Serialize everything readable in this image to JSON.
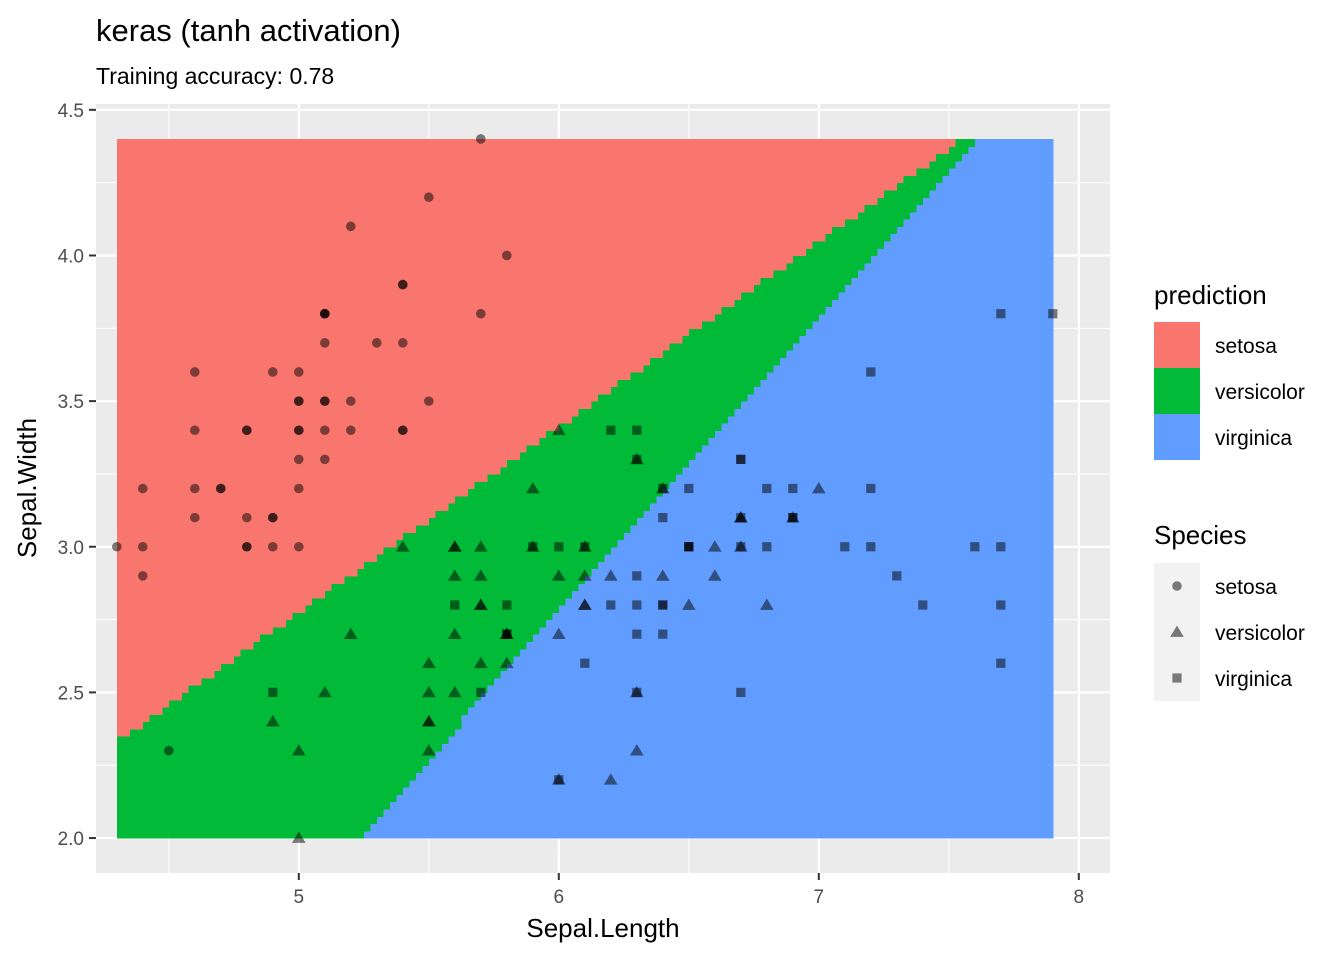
{
  "chart_data": {
    "type": "scatter",
    "title": "keras (tanh activation)",
    "subtitle": "Training accuracy: 0.78",
    "xlabel": "Sepal.Length",
    "ylabel": "Sepal.Width",
    "xlim": [
      4.22,
      8.12
    ],
    "ylim": [
      1.88,
      4.52
    ],
    "x_ticks": [
      5,
      6,
      7,
      8
    ],
    "y_ticks": [
      2.0,
      2.5,
      3.0,
      3.5,
      4.0,
      4.5
    ],
    "x_tick_labels": [
      "5",
      "6",
      "7",
      "8"
    ],
    "y_tick_labels": [
      "2.0",
      "2.5",
      "3.0",
      "3.5",
      "4.0",
      "4.5"
    ],
    "grid": true,
    "background": "#EBEBEB",
    "prediction_region": {
      "x_range": [
        4.3,
        7.9
      ],
      "y_range": [
        2.0,
        4.4
      ],
      "versicolor_lower_boundary": [
        [
          5.23,
          2.0
        ],
        [
          7.6,
          4.4
        ]
      ],
      "versicolor_upper_boundary": [
        [
          4.3,
          2.33
        ],
        [
          7.55,
          4.4
        ]
      ]
    },
    "legend_prediction": {
      "title": "prediction",
      "position": "right",
      "items": [
        {
          "label": "setosa",
          "color": "#F8766D"
        },
        {
          "label": "versicolor",
          "color": "#00BA38"
        },
        {
          "label": "virginica",
          "color": "#619CFF"
        }
      ]
    },
    "legend_species": {
      "title": "Species",
      "position": "right",
      "items": [
        {
          "label": "setosa",
          "shape": "circle"
        },
        {
          "label": "versicolor",
          "shape": "triangle"
        },
        {
          "label": "virginica",
          "shape": "square"
        }
      ]
    },
    "series": [
      {
        "name": "setosa",
        "shape": "circle",
        "points": [
          [
            5.1,
            3.5
          ],
          [
            4.9,
            3.0
          ],
          [
            4.7,
            3.2
          ],
          [
            4.6,
            3.1
          ],
          [
            5.0,
            3.6
          ],
          [
            5.4,
            3.9
          ],
          [
            4.6,
            3.4
          ],
          [
            5.0,
            3.4
          ],
          [
            4.4,
            2.9
          ],
          [
            4.9,
            3.1
          ],
          [
            5.4,
            3.7
          ],
          [
            4.8,
            3.4
          ],
          [
            4.8,
            3.0
          ],
          [
            4.3,
            3.0
          ],
          [
            5.8,
            4.0
          ],
          [
            5.7,
            4.4
          ],
          [
            5.4,
            3.9
          ],
          [
            5.1,
            3.5
          ],
          [
            5.7,
            3.8
          ],
          [
            5.1,
            3.8
          ],
          [
            5.4,
            3.4
          ],
          [
            5.1,
            3.7
          ],
          [
            4.6,
            3.6
          ],
          [
            5.1,
            3.3
          ],
          [
            4.8,
            3.4
          ],
          [
            5.0,
            3.0
          ],
          [
            5.0,
            3.4
          ],
          [
            5.2,
            3.5
          ],
          [
            5.2,
            3.4
          ],
          [
            4.7,
            3.2
          ],
          [
            4.8,
            3.1
          ],
          [
            5.4,
            3.4
          ],
          [
            5.2,
            4.1
          ],
          [
            5.5,
            4.2
          ],
          [
            4.9,
            3.1
          ],
          [
            5.0,
            3.2
          ],
          [
            5.5,
            3.5
          ],
          [
            4.9,
            3.6
          ],
          [
            4.4,
            3.0
          ],
          [
            5.1,
            3.4
          ],
          [
            5.0,
            3.5
          ],
          [
            4.5,
            2.3
          ],
          [
            4.4,
            3.2
          ],
          [
            5.0,
            3.5
          ],
          [
            5.1,
            3.8
          ],
          [
            4.8,
            3.0
          ],
          [
            5.1,
            3.8
          ],
          [
            4.6,
            3.2
          ],
          [
            5.3,
            3.7
          ],
          [
            5.0,
            3.3
          ]
        ]
      },
      {
        "name": "versicolor",
        "shape": "triangle",
        "points": [
          [
            7.0,
            3.2
          ],
          [
            6.4,
            3.2
          ],
          [
            6.9,
            3.1
          ],
          [
            5.5,
            2.3
          ],
          [
            6.5,
            2.8
          ],
          [
            5.7,
            2.8
          ],
          [
            6.3,
            3.3
          ],
          [
            4.9,
            2.4
          ],
          [
            6.6,
            2.9
          ],
          [
            5.2,
            2.7
          ],
          [
            5.0,
            2.0
          ],
          [
            5.9,
            3.0
          ],
          [
            6.0,
            2.2
          ],
          [
            6.1,
            2.9
          ],
          [
            5.6,
            2.9
          ],
          [
            6.7,
            3.1
          ],
          [
            5.6,
            3.0
          ],
          [
            5.8,
            2.7
          ],
          [
            6.2,
            2.2
          ],
          [
            5.6,
            2.5
          ],
          [
            5.9,
            3.2
          ],
          [
            6.1,
            2.8
          ],
          [
            6.3,
            2.5
          ],
          [
            6.1,
            2.8
          ],
          [
            6.4,
            2.9
          ],
          [
            6.6,
            3.0
          ],
          [
            6.8,
            2.8
          ],
          [
            6.7,
            3.0
          ],
          [
            6.0,
            2.9
          ],
          [
            5.7,
            2.6
          ],
          [
            5.5,
            2.4
          ],
          [
            5.5,
            2.4
          ],
          [
            5.8,
            2.7
          ],
          [
            6.0,
            2.7
          ],
          [
            5.4,
            3.0
          ],
          [
            6.0,
            3.4
          ],
          [
            6.7,
            3.1
          ],
          [
            6.3,
            2.3
          ],
          [
            5.6,
            3.0
          ],
          [
            5.5,
            2.5
          ],
          [
            5.5,
            2.6
          ],
          [
            6.1,
            3.0
          ],
          [
            5.8,
            2.6
          ],
          [
            5.0,
            2.3
          ],
          [
            5.6,
            2.7
          ],
          [
            5.7,
            3.0
          ],
          [
            5.7,
            2.9
          ],
          [
            6.2,
            2.9
          ],
          [
            5.1,
            2.5
          ],
          [
            5.7,
            2.8
          ]
        ]
      },
      {
        "name": "virginica",
        "shape": "square",
        "points": [
          [
            6.3,
            3.3
          ],
          [
            5.8,
            2.7
          ],
          [
            7.1,
            3.0
          ],
          [
            6.3,
            2.9
          ],
          [
            6.5,
            3.0
          ],
          [
            7.6,
            3.0
          ],
          [
            4.9,
            2.5
          ],
          [
            7.3,
            2.9
          ],
          [
            6.7,
            2.5
          ],
          [
            7.2,
            3.6
          ],
          [
            6.5,
            3.2
          ],
          [
            6.4,
            2.7
          ],
          [
            6.8,
            3.0
          ],
          [
            5.7,
            2.5
          ],
          [
            5.8,
            2.8
          ],
          [
            6.4,
            3.2
          ],
          [
            6.5,
            3.0
          ],
          [
            7.7,
            3.8
          ],
          [
            7.7,
            2.6
          ],
          [
            6.0,
            2.2
          ],
          [
            6.9,
            3.2
          ],
          [
            5.6,
            2.8
          ],
          [
            7.7,
            2.8
          ],
          [
            6.3,
            2.7
          ],
          [
            6.7,
            3.3
          ],
          [
            7.2,
            3.2
          ],
          [
            6.2,
            2.8
          ],
          [
            6.1,
            3.0
          ],
          [
            6.4,
            2.8
          ],
          [
            7.2,
            3.0
          ],
          [
            7.4,
            2.8
          ],
          [
            7.9,
            3.8
          ],
          [
            6.4,
            2.8
          ],
          [
            6.3,
            2.8
          ],
          [
            6.1,
            2.6
          ],
          [
            7.7,
            3.0
          ],
          [
            6.3,
            3.4
          ],
          [
            6.4,
            3.1
          ],
          [
            6.0,
            3.0
          ],
          [
            6.9,
            3.1
          ],
          [
            6.7,
            3.1
          ],
          [
            6.9,
            3.1
          ],
          [
            5.8,
            2.7
          ],
          [
            6.8,
            3.2
          ],
          [
            6.7,
            3.3
          ],
          [
            6.7,
            3.0
          ],
          [
            6.3,
            2.5
          ],
          [
            6.5,
            3.0
          ],
          [
            6.2,
            3.4
          ],
          [
            5.9,
            3.0
          ]
        ]
      }
    ]
  }
}
